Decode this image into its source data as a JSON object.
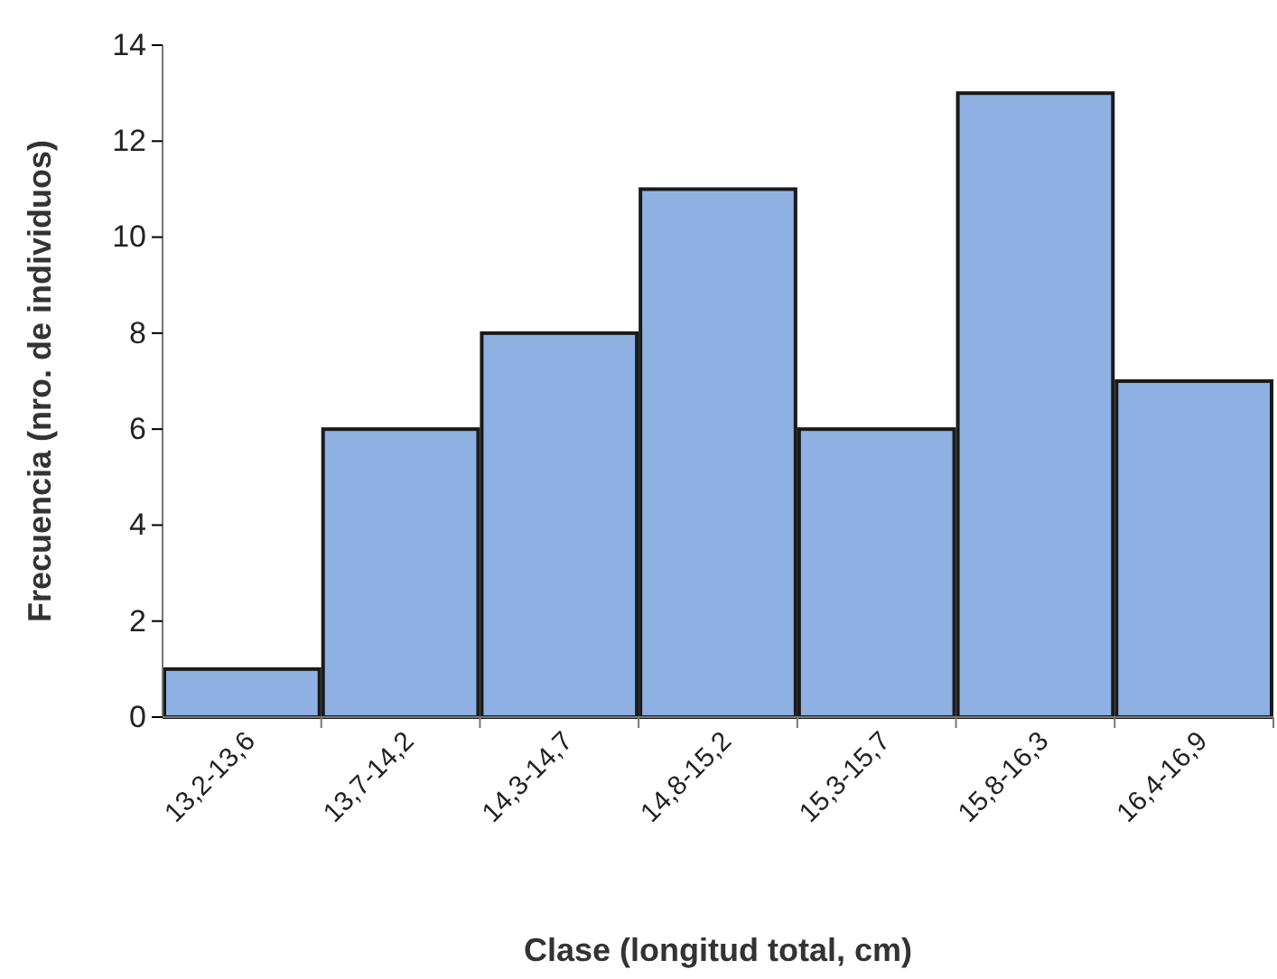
{
  "chart_data": {
    "type": "bar",
    "xlabel": "Clase (longitud total, cm)",
    "ylabel": "Frecuencia (nro. de individuos)",
    "categories": [
      "13,2-13,6",
      "13,7-14,2",
      "14,3-14,7",
      "14,8-15,2",
      "15,3-15,7",
      "15,8-16,3",
      "16,4-16,9"
    ],
    "values": [
      1,
      6,
      8,
      11,
      6,
      13,
      7
    ],
    "color": "#8fb0e3",
    "ylim": [
      0,
      14
    ],
    "yticks": [
      0,
      2,
      4,
      6,
      8,
      10,
      12,
      14
    ],
    "grid": false
  }
}
